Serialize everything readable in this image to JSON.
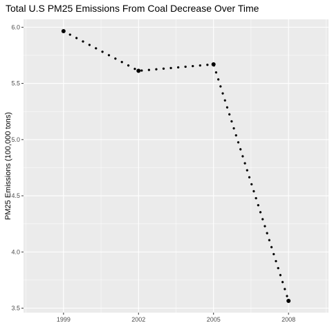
{
  "chart_data": {
    "type": "line",
    "title": "Total U.S PM25 Emissions From Coal Decrease Over Time",
    "xlabel": "",
    "ylabel": "PM25 Emissions (100,000 tons)",
    "x": [
      1999,
      2002,
      2005,
      2008
    ],
    "series": [
      {
        "values": [
          5.965,
          5.612,
          5.67,
          3.565
        ]
      }
    ],
    "xlim": [
      1997.4,
      2009.6
    ],
    "ylim": [
      3.46,
      6.07
    ],
    "x_ticks": [
      1999,
      2002,
      2005,
      2008
    ],
    "y_ticks": [
      3.5,
      4.0,
      4.5,
      5.0,
      5.5,
      6.0
    ],
    "y_tick_labels": [
      "3.5",
      "4.0",
      "4.5",
      "5.0",
      "5.5",
      "6.0"
    ],
    "line_style": "dotted",
    "grid": true,
    "legend": "none",
    "colors": {
      "panel_background": "#ebebeb",
      "grid_major": "#ffffff",
      "series": "#000000",
      "tick_text": "#4d4d4d"
    }
  }
}
